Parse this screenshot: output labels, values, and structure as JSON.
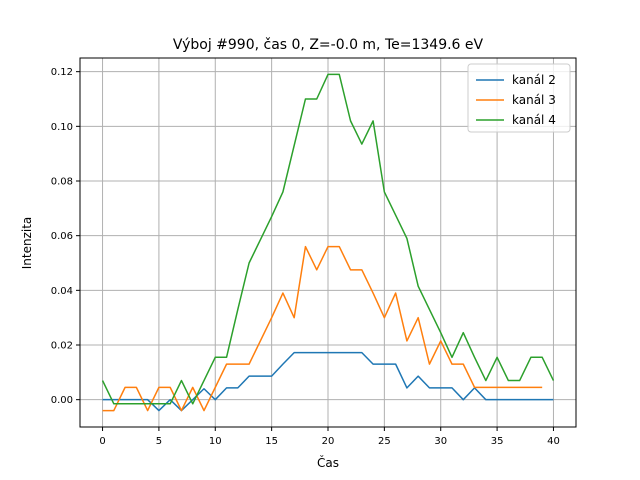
{
  "chart_data": {
    "type": "line",
    "title": "Výboj #990, čas 0, Z=-0.0 m, Te=1349.6 eV",
    "xlabel": "Čas",
    "ylabel": "Intenzita",
    "xlim": [
      -2,
      42
    ],
    "ylim": [
      -0.01,
      0.125
    ],
    "xticks": [
      0,
      5,
      10,
      15,
      20,
      25,
      30,
      35,
      40
    ],
    "yticks": [
      0.0,
      0.02,
      0.04,
      0.06,
      0.08,
      0.1,
      0.12
    ],
    "xtick_labels": [
      "0",
      "5",
      "10",
      "15",
      "20",
      "25",
      "30",
      "35",
      "40"
    ],
    "ytick_labels": [
      "0.00",
      "0.02",
      "0.04",
      "0.06",
      "0.08",
      "0.10",
      "0.12"
    ],
    "grid": true,
    "legend_position": "top-right",
    "series": [
      {
        "name": "kanál 2",
        "color": "#1f77b4",
        "x": [
          0,
          1,
          2,
          3,
          4,
          5,
          6,
          7,
          8,
          9,
          10,
          11,
          12,
          13,
          14,
          15,
          16,
          17,
          18,
          19,
          20,
          21,
          22,
          23,
          24,
          25,
          26,
          27,
          28,
          29,
          30,
          31,
          32,
          33,
          34,
          35,
          36,
          37,
          38,
          39,
          40
        ],
        "values": [
          0.0,
          0.0,
          0.0,
          0.0,
          0.0,
          -0.004,
          0.0,
          -0.004,
          0.0,
          0.004,
          0.0,
          0.0043,
          0.0043,
          0.0086,
          0.0086,
          0.0086,
          0.013,
          0.0172,
          0.0172,
          0.0172,
          0.0172,
          0.0172,
          0.0172,
          0.0172,
          0.013,
          0.013,
          0.013,
          0.0043,
          0.0086,
          0.0043,
          0.0043,
          0.0043,
          0.0,
          0.0043,
          0.0,
          0.0,
          0.0,
          0.0,
          0.0,
          0.0,
          0.0
        ]
      },
      {
        "name": "kanál 3",
        "color": "#ff7f0e",
        "x": [
          0,
          1,
          2,
          3,
          4,
          5,
          6,
          7,
          8,
          9,
          10,
          11,
          12,
          13,
          14,
          15,
          16,
          17,
          18,
          19,
          20,
          21,
          22,
          23,
          24,
          25,
          26,
          27,
          28,
          29,
          30,
          31,
          32,
          33,
          34,
          35,
          36,
          37,
          38,
          39
        ],
        "values": [
          -0.004,
          -0.004,
          0.0045,
          0.0045,
          -0.004,
          0.0045,
          0.0045,
          -0.004,
          0.0045,
          -0.004,
          0.0045,
          0.013,
          0.013,
          0.013,
          0.0215,
          0.03,
          0.039,
          0.03,
          0.056,
          0.0475,
          0.056,
          0.056,
          0.0475,
          0.0475,
          0.039,
          0.03,
          0.039,
          0.0215,
          0.03,
          0.013,
          0.0215,
          0.013,
          0.013,
          0.0045,
          0.0045,
          0.0045,
          0.0045,
          0.0045,
          0.0045,
          0.0045
        ]
      },
      {
        "name": "kanál 4",
        "color": "#2ca02c",
        "x": [
          0,
          1,
          2,
          3,
          4,
          5,
          6,
          7,
          8,
          9,
          10,
          11,
          12,
          13,
          14,
          15,
          16,
          17,
          18,
          19,
          20,
          21,
          22,
          23,
          24,
          25,
          26,
          27,
          28,
          29,
          30,
          31,
          32,
          33,
          34,
          35,
          36,
          37,
          38,
          39,
          40
        ],
        "values": [
          0.007,
          -0.0015,
          -0.0015,
          -0.0015,
          -0.0015,
          -0.0015,
          -0.0015,
          0.007,
          -0.0015,
          0.007,
          0.0155,
          0.0155,
          0.033,
          0.05,
          0.0585,
          0.067,
          0.076,
          0.093,
          0.11,
          0.11,
          0.119,
          0.119,
          0.102,
          0.0935,
          0.102,
          0.076,
          0.0675,
          0.059,
          0.0415,
          0.033,
          0.0245,
          0.0155,
          0.0245,
          0.0155,
          0.007,
          0.0155,
          0.007,
          0.007,
          0.0155,
          0.0155,
          0.007
        ]
      }
    ]
  }
}
